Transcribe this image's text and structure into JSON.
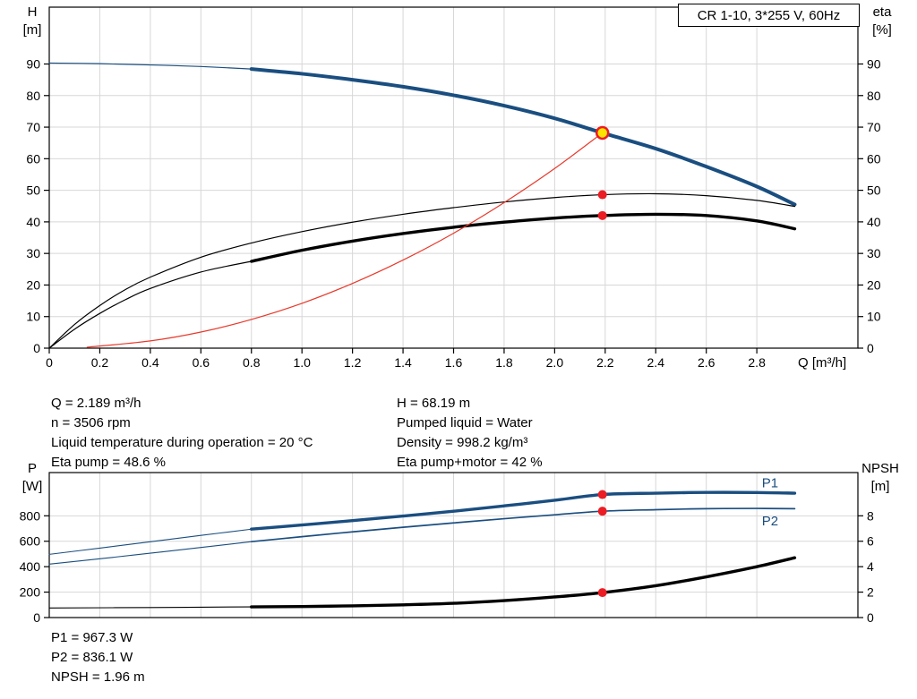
{
  "title_box": {
    "label": "CR 1-10, 3*255 V, 60Hz"
  },
  "axes_labels": {
    "top_left_line1": "H",
    "top_left_line2": "[m]",
    "top_right_line1": "eta",
    "top_right_line2": "[%]",
    "x_axis": "Q [m³/h]",
    "bottom_left_line1": "P",
    "bottom_left_line2": "[W]",
    "bottom_right_line1": "NPSH",
    "bottom_right_line2": "[m]"
  },
  "info_top": {
    "left": [
      "Q = 2.189 m³/h",
      "n = 3506 rpm",
      "Liquid temperature during operation = 20 °C",
      "Eta pump = 48.6 %"
    ],
    "right": [
      "H = 68.19 m",
      "Pumped liquid = Water",
      "Density = 998.2 kg/m³",
      "Eta pump+motor = 42 %"
    ]
  },
  "info_bottom": [
    "P1 = 967.3 W",
    "P2 = 836.1 W",
    "NPSH = 1.96 m"
  ],
  "colors": {
    "curve_blue": "#1a4e80",
    "curve_black": "#000000",
    "curve_red": "#e8392b",
    "marker_red": "#ec1c24",
    "marker_yellow": "#ffe400",
    "grid": "#d7d7d7"
  },
  "chart_data": [
    {
      "type": "line",
      "title": "CR 1-10, 3*255 V, 60Hz",
      "xlabel": "Q [m³/h]",
      "ylabel_left": "H [m]",
      "ylabel_right": "eta [%]",
      "xlim": [
        0,
        3.2
      ],
      "ylim_left": [
        0,
        108
      ],
      "ylim_right": [
        0,
        108
      ],
      "grid": true,
      "xticks": [
        0,
        0.2,
        0.4,
        0.6,
        0.8,
        1.0,
        1.2,
        1.4,
        1.6,
        1.8,
        2.0,
        2.2,
        2.4,
        2.6,
        2.8
      ],
      "xtick_labels": [
        "0",
        "0.2",
        "0.4",
        "0.6",
        "0.8",
        "1.0",
        "1.2",
        "1.4",
        "1.6",
        "1.8",
        "2.0",
        "2.2",
        "2.4",
        "2.6",
        "2.8"
      ],
      "yticks_left": [
        0,
        10,
        20,
        30,
        40,
        50,
        60,
        70,
        80,
        90
      ],
      "yticks_right": [
        0,
        10,
        20,
        30,
        40,
        50,
        60,
        70,
        80,
        90
      ],
      "series": [
        {
          "name": "head-curve-lead",
          "axis": "left",
          "color": "#1a4e80",
          "width": 1.2,
          "points": [
            [
              0,
              90.3
            ],
            [
              0.2,
              90.1
            ],
            [
              0.4,
              89.7
            ],
            [
              0.6,
              89.2
            ],
            [
              0.8,
              88.4
            ]
          ]
        },
        {
          "name": "head-curve",
          "axis": "left",
          "color": "#1a4e80",
          "width": 4,
          "points": [
            [
              0.8,
              88.4
            ],
            [
              1.0,
              86.9
            ],
            [
              1.2,
              85.0
            ],
            [
              1.4,
              82.8
            ],
            [
              1.6,
              80.1
            ],
            [
              1.8,
              76.8
            ],
            [
              2.0,
              72.8
            ],
            [
              2.189,
              68.19
            ],
            [
              2.4,
              63.2
            ],
            [
              2.6,
              57.5
            ],
            [
              2.8,
              51.2
            ],
            [
              2.95,
              45.5
            ]
          ]
        },
        {
          "name": "eta-pump-curve",
          "axis": "right",
          "color": "#000000",
          "width": 1.2,
          "points": [
            [
              0,
              0
            ],
            [
              0.1,
              7.5
            ],
            [
              0.2,
              13.5
            ],
            [
              0.3,
              18.5
            ],
            [
              0.4,
              22.5
            ],
            [
              0.6,
              28.8
            ],
            [
              0.8,
              33.3
            ],
            [
              1.0,
              36.9
            ],
            [
              1.2,
              39.9
            ],
            [
              1.4,
              42.4
            ],
            [
              1.6,
              44.5
            ],
            [
              1.8,
              46.3
            ],
            [
              2.0,
              47.7
            ],
            [
              2.189,
              48.6
            ],
            [
              2.4,
              48.9
            ],
            [
              2.6,
              48.3
            ],
            [
              2.8,
              46.8
            ],
            [
              2.95,
              44.9
            ]
          ]
        },
        {
          "name": "eta-pump-motor-lead",
          "axis": "right",
          "color": "#000000",
          "width": 1.2,
          "points": [
            [
              0,
              0
            ],
            [
              0.1,
              6.0
            ],
            [
              0.2,
              11.0
            ],
            [
              0.3,
              15.3
            ],
            [
              0.4,
              18.9
            ],
            [
              0.6,
              24.1
            ],
            [
              0.8,
              27.5
            ]
          ]
        },
        {
          "name": "eta-pump-motor-curve",
          "axis": "right",
          "color": "#000000",
          "width": 3.4,
          "points": [
            [
              0.8,
              27.5
            ],
            [
              1.0,
              31.0
            ],
            [
              1.2,
              33.9
            ],
            [
              1.4,
              36.3
            ],
            [
              1.6,
              38.3
            ],
            [
              1.8,
              39.9
            ],
            [
              2.0,
              41.2
            ],
            [
              2.189,
              42.0
            ],
            [
              2.4,
              42.4
            ],
            [
              2.6,
              42.0
            ],
            [
              2.8,
              40.3
            ],
            [
              2.95,
              37.8
            ]
          ]
        },
        {
          "name": "system-curve",
          "axis": "left",
          "color": "#e8392b",
          "width": 1.2,
          "points": [
            [
              0.15,
              0.3
            ],
            [
              0.4,
              2.3
            ],
            [
              0.6,
              5.1
            ],
            [
              0.8,
              9.1
            ],
            [
              1.0,
              14.2
            ],
            [
              1.2,
              20.5
            ],
            [
              1.4,
              27.9
            ],
            [
              1.6,
              36.4
            ],
            [
              1.8,
              46.1
            ],
            [
              2.0,
              56.9
            ],
            [
              2.189,
              68.19
            ]
          ]
        }
      ],
      "markers": [
        {
          "name": "duty-point",
          "q": 2.189,
          "value": 68.19,
          "axis": "left",
          "r": 6.5,
          "fill": "#ffe400",
          "stroke": "#ec1c24",
          "stroke_width": 2.5,
          "interactable": true
        },
        {
          "name": "eta-pump-point",
          "q": 2.189,
          "value": 48.6,
          "axis": "right",
          "r": 5,
          "fill": "#ec1c24",
          "interactable": false
        },
        {
          "name": "eta-pump-motor-point",
          "q": 2.189,
          "value": 42.0,
          "axis": "right",
          "r": 5,
          "fill": "#ec1c24",
          "interactable": false
        }
      ],
      "labels": []
    },
    {
      "type": "line",
      "title": "Power and NPSH curves",
      "xlabel": "Q [m³/h]",
      "ylabel_left": "P [W]",
      "ylabel_right": "NPSH [m]",
      "xlim": [
        0,
        3.2
      ],
      "ylim_left": [
        0,
        1140
      ],
      "ylim_right": [
        0,
        11.4
      ],
      "grid": true,
      "xticks": [
        0,
        0.2,
        0.4,
        0.6,
        0.8,
        1.0,
        1.2,
        1.4,
        1.6,
        1.8,
        2.0,
        2.2,
        2.4,
        2.6,
        2.8
      ],
      "yticks_left": [
        0,
        200,
        400,
        600,
        800
      ],
      "yticks_right": [
        0,
        2,
        4,
        6,
        8
      ],
      "series": [
        {
          "name": "p1-lead",
          "axis": "left",
          "color": "#1a4e80",
          "width": 1.1,
          "points": [
            [
              0,
              497
            ],
            [
              0.2,
              546
            ],
            [
              0.4,
              596
            ],
            [
              0.6,
              646
            ],
            [
              0.8,
              695
            ]
          ]
        },
        {
          "name": "p1-curve",
          "axis": "left",
          "color": "#1a4e80",
          "width": 3.4,
          "points": [
            [
              0.8,
              695
            ],
            [
              1.0,
              728
            ],
            [
              1.2,
              762
            ],
            [
              1.4,
              798
            ],
            [
              1.6,
              836
            ],
            [
              1.8,
              878
            ],
            [
              2.0,
              922
            ],
            [
              2.189,
              967.3
            ],
            [
              2.4,
              978
            ],
            [
              2.6,
              984
            ],
            [
              2.8,
              983
            ],
            [
              2.95,
              978
            ]
          ]
        },
        {
          "name": "p2-lead",
          "axis": "left",
          "color": "#1a4e80",
          "width": 1.1,
          "points": [
            [
              0,
              420
            ],
            [
              0.2,
              462
            ],
            [
              0.4,
              506
            ],
            [
              0.6,
              551
            ],
            [
              0.8,
              597
            ]
          ]
        },
        {
          "name": "p2-curve",
          "axis": "left",
          "color": "#1a4e80",
          "width": 1.7,
          "points": [
            [
              0.8,
              597
            ],
            [
              1.0,
              636
            ],
            [
              1.2,
              674
            ],
            [
              1.4,
              710
            ],
            [
              1.6,
              744
            ],
            [
              1.8,
              777
            ],
            [
              2.0,
              808
            ],
            [
              2.189,
              836.1
            ],
            [
              2.4,
              848
            ],
            [
              2.6,
              856
            ],
            [
              2.8,
              858
            ],
            [
              2.95,
              856
            ]
          ]
        },
        {
          "name": "npsh-lead",
          "axis": "right",
          "color": "#000000",
          "width": 1.1,
          "points": [
            [
              0,
              0.75
            ],
            [
              0.4,
              0.79
            ],
            [
              0.8,
              0.84
            ]
          ]
        },
        {
          "name": "npsh-curve",
          "axis": "right",
          "color": "#000000",
          "width": 3.4,
          "points": [
            [
              0.8,
              0.84
            ],
            [
              1.0,
              0.87
            ],
            [
              1.2,
              0.92
            ],
            [
              1.4,
              1.0
            ],
            [
              1.6,
              1.12
            ],
            [
              1.8,
              1.33
            ],
            [
              2.0,
              1.62
            ],
            [
              2.189,
              1.96
            ],
            [
              2.4,
              2.5
            ],
            [
              2.6,
              3.2
            ],
            [
              2.8,
              4.0
            ],
            [
              2.95,
              4.7
            ]
          ]
        }
      ],
      "markers": [
        {
          "name": "p1-point",
          "q": 2.189,
          "value": 967.3,
          "axis": "left",
          "r": 5,
          "fill": "#ec1c24",
          "interactable": false
        },
        {
          "name": "p2-point",
          "q": 2.189,
          "value": 836.1,
          "axis": "left",
          "r": 5,
          "fill": "#ec1c24",
          "interactable": false
        },
        {
          "name": "npsh-point",
          "q": 2.189,
          "value": 1.96,
          "axis": "right",
          "r": 5,
          "fill": "#ec1c24",
          "interactable": false
        }
      ],
      "labels": [
        {
          "text": "P1",
          "q": 2.82,
          "value": 1060,
          "axis": "left",
          "color": "#1a4e80"
        },
        {
          "text": "P2",
          "q": 2.82,
          "value": 760,
          "axis": "left",
          "color": "#1a4e80"
        }
      ]
    }
  ]
}
